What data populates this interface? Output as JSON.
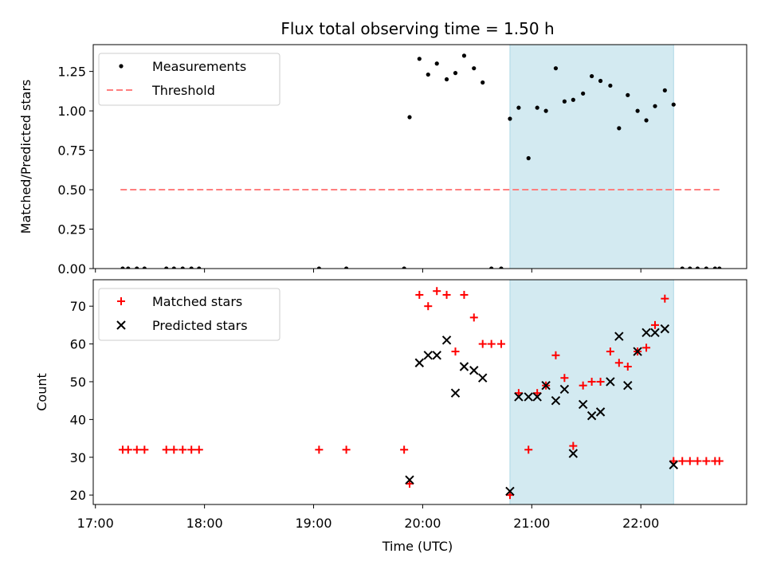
{
  "chart_data": [
    {
      "type": "scatter",
      "title": "Flux total observing time = 1.50 h",
      "xlabel": "",
      "ylabel": "Matched/Predicted stars",
      "ylim": [
        0,
        1.42
      ],
      "yticks": [
        "0.00",
        "0.25",
        "0.50",
        "0.75",
        "1.00",
        "1.25"
      ],
      "ytick_values": [
        0,
        0.25,
        0.5,
        0.75,
        1.0,
        1.25
      ],
      "xlim_hours": [
        16.98,
        22.97
      ],
      "highlight_span_hours": [
        20.8,
        22.3
      ],
      "highlight_color": "#d3eaf1",
      "legend_position": "upper-left",
      "series": [
        {
          "name": "Measurements",
          "marker": "dot",
          "color": "#000000",
          "points": [
            [
              17.25,
              0
            ],
            [
              17.3,
              0
            ],
            [
              17.38,
              0
            ],
            [
              17.45,
              0
            ],
            [
              17.65,
              0
            ],
            [
              17.72,
              0
            ],
            [
              17.8,
              0
            ],
            [
              17.88,
              0
            ],
            [
              17.95,
              0
            ],
            [
              19.05,
              0
            ],
            [
              19.3,
              0
            ],
            [
              19.83,
              0
            ],
            [
              19.88,
              0.96
            ],
            [
              19.97,
              1.33
            ],
            [
              20.05,
              1.23
            ],
            [
              20.13,
              1.3
            ],
            [
              20.22,
              1.2
            ],
            [
              20.3,
              1.24
            ],
            [
              20.38,
              1.35
            ],
            [
              20.47,
              1.27
            ],
            [
              20.55,
              1.18
            ],
            [
              20.63,
              0
            ],
            [
              20.72,
              0
            ],
            [
              20.8,
              0.95
            ],
            [
              20.88,
              1.02
            ],
            [
              20.97,
              0.7
            ],
            [
              21.05,
              1.02
            ],
            [
              21.13,
              1.0
            ],
            [
              21.22,
              1.27
            ],
            [
              21.3,
              1.06
            ],
            [
              21.38,
              1.07
            ],
            [
              21.47,
              1.11
            ],
            [
              21.55,
              1.22
            ],
            [
              21.63,
              1.19
            ],
            [
              21.72,
              1.16
            ],
            [
              21.8,
              0.89
            ],
            [
              21.88,
              1.1
            ],
            [
              21.97,
              1.0
            ],
            [
              22.05,
              0.94
            ],
            [
              22.13,
              1.03
            ],
            [
              22.22,
              1.13
            ],
            [
              22.3,
              1.04
            ],
            [
              22.38,
              0
            ],
            [
              22.45,
              0
            ],
            [
              22.52,
              0
            ],
            [
              22.6,
              0
            ],
            [
              22.68,
              0
            ],
            [
              22.72,
              0
            ]
          ]
        },
        {
          "name": "Threshold",
          "marker": "dashed-line",
          "color": "#ff7f7f",
          "x_range_hours": [
            17.23,
            22.72
          ],
          "value": 0.5
        }
      ]
    },
    {
      "type": "scatter",
      "title": "",
      "xlabel": "Time (UTC)",
      "ylabel": "Count",
      "ylim": [
        17.5,
        77
      ],
      "yticks": [
        "20",
        "30",
        "40",
        "50",
        "60",
        "70"
      ],
      "ytick_values": [
        20,
        30,
        40,
        50,
        60,
        70
      ],
      "xticks": [
        "17:00",
        "18:00",
        "19:00",
        "20:00",
        "21:00",
        "22:00"
      ],
      "xtick_values_hours": [
        17,
        18,
        19,
        20,
        21,
        22
      ],
      "xlim_hours": [
        16.98,
        22.97
      ],
      "highlight_span_hours": [
        20.8,
        22.3
      ],
      "highlight_color": "#d3eaf1",
      "legend_position": "upper-left",
      "series": [
        {
          "name": "Matched stars",
          "marker": "plus",
          "color": "#ff0000",
          "points": [
            [
              17.25,
              32
            ],
            [
              17.3,
              32
            ],
            [
              17.38,
              32
            ],
            [
              17.45,
              32
            ],
            [
              17.65,
              32
            ],
            [
              17.72,
              32
            ],
            [
              17.8,
              32
            ],
            [
              17.88,
              32
            ],
            [
              17.95,
              32
            ],
            [
              19.05,
              32
            ],
            [
              19.3,
              32
            ],
            [
              19.83,
              32
            ],
            [
              19.88,
              23
            ],
            [
              19.97,
              73
            ],
            [
              20.05,
              70
            ],
            [
              20.13,
              74
            ],
            [
              20.22,
              73
            ],
            [
              20.3,
              58
            ],
            [
              20.38,
              73
            ],
            [
              20.47,
              67
            ],
            [
              20.55,
              60
            ],
            [
              20.63,
              60
            ],
            [
              20.72,
              60
            ],
            [
              20.8,
              20
            ],
            [
              20.88,
              47
            ],
            [
              20.97,
              32
            ],
            [
              21.05,
              47
            ],
            [
              21.13,
              49
            ],
            [
              21.22,
              57
            ],
            [
              21.3,
              51
            ],
            [
              21.38,
              33
            ],
            [
              21.47,
              49
            ],
            [
              21.55,
              50
            ],
            [
              21.63,
              50
            ],
            [
              21.72,
              58
            ],
            [
              21.8,
              55
            ],
            [
              21.88,
              54
            ],
            [
              21.97,
              58
            ],
            [
              22.05,
              59
            ],
            [
              22.13,
              65
            ],
            [
              22.22,
              72
            ],
            [
              22.3,
              29
            ],
            [
              22.38,
              29
            ],
            [
              22.45,
              29
            ],
            [
              22.52,
              29
            ],
            [
              22.6,
              29
            ],
            [
              22.68,
              29
            ],
            [
              22.72,
              29
            ]
          ]
        },
        {
          "name": "Predicted stars",
          "marker": "x",
          "color": "#000000",
          "points": [
            [
              19.88,
              24
            ],
            [
              19.97,
              55
            ],
            [
              20.05,
              57
            ],
            [
              20.13,
              57
            ],
            [
              20.22,
              61
            ],
            [
              20.3,
              47
            ],
            [
              20.38,
              54
            ],
            [
              20.47,
              53
            ],
            [
              20.55,
              51
            ],
            [
              20.8,
              21
            ],
            [
              20.88,
              46
            ],
            [
              20.97,
              46
            ],
            [
              21.05,
              46
            ],
            [
              21.13,
              49
            ],
            [
              21.22,
              45
            ],
            [
              21.3,
              48
            ],
            [
              21.38,
              31
            ],
            [
              21.47,
              44
            ],
            [
              21.55,
              41
            ],
            [
              21.63,
              42
            ],
            [
              21.72,
              50
            ],
            [
              21.8,
              62
            ],
            [
              21.88,
              49
            ],
            [
              21.97,
              58
            ],
            [
              22.05,
              63
            ],
            [
              22.13,
              63
            ],
            [
              22.22,
              64
            ],
            [
              22.3,
              28
            ]
          ]
        }
      ]
    }
  ]
}
